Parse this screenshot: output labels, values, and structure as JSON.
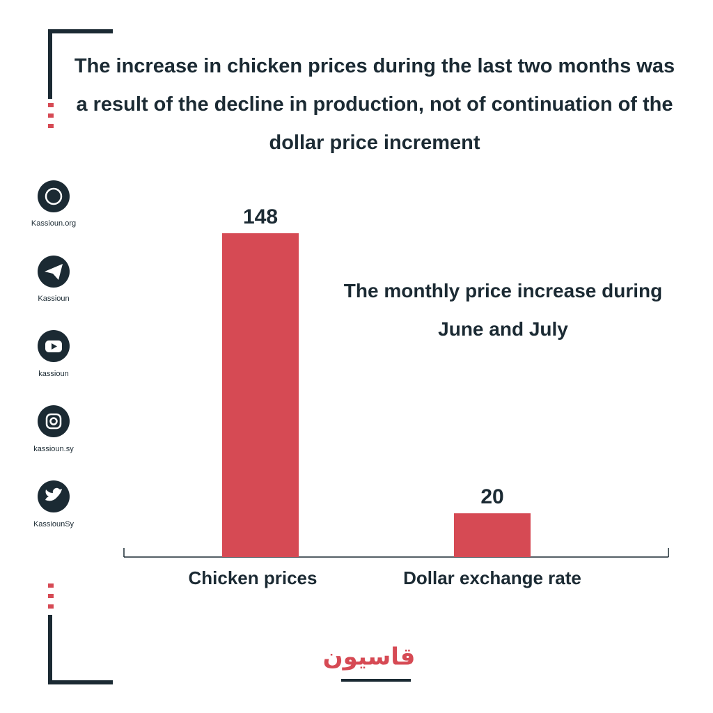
{
  "chart_data": {
    "type": "bar",
    "title": "The increase in chicken prices during the last two months was a result of the decline in production, not of continuation of the dollar price increment",
    "subtitle": "The monthly price increase during June and July",
    "categories": [
      "Chicken prices",
      "Dollar exchange rate"
    ],
    "values": [
      148,
      20
    ],
    "color": "#d64a54"
  },
  "social": [
    "Kassioun.org",
    "Kassioun",
    "kassioun",
    "kassioun.sy",
    "KassiounSy"
  ],
  "logo": "قاسيون"
}
